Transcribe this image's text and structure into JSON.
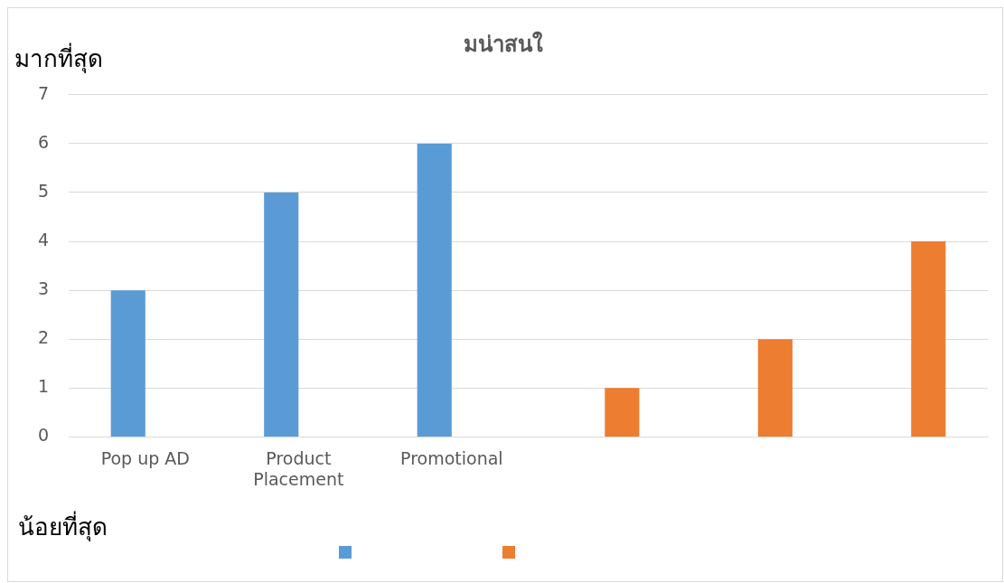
{
  "chart_data": {
    "type": "bar",
    "title": "มน่าสนใ",
    "categories": [
      "Pop up AD",
      "Product Placement",
      "Promotional",
      null,
      null,
      null
    ],
    "series": [
      {
        "color": "#5b9bd5",
        "values": [
          3,
          5,
          6,
          null,
          null,
          null
        ]
      },
      {
        "color": "#ed7d31",
        "values": [
          null,
          null,
          null,
          1,
          2,
          4
        ]
      }
    ],
    "ylim": [
      0,
      7
    ],
    "yticks": [
      0,
      1,
      2,
      3,
      4,
      5,
      6,
      7
    ],
    "grid": "y",
    "annotations": [
      "มากที่สุด",
      "น้อยที่สุด"
    ]
  }
}
